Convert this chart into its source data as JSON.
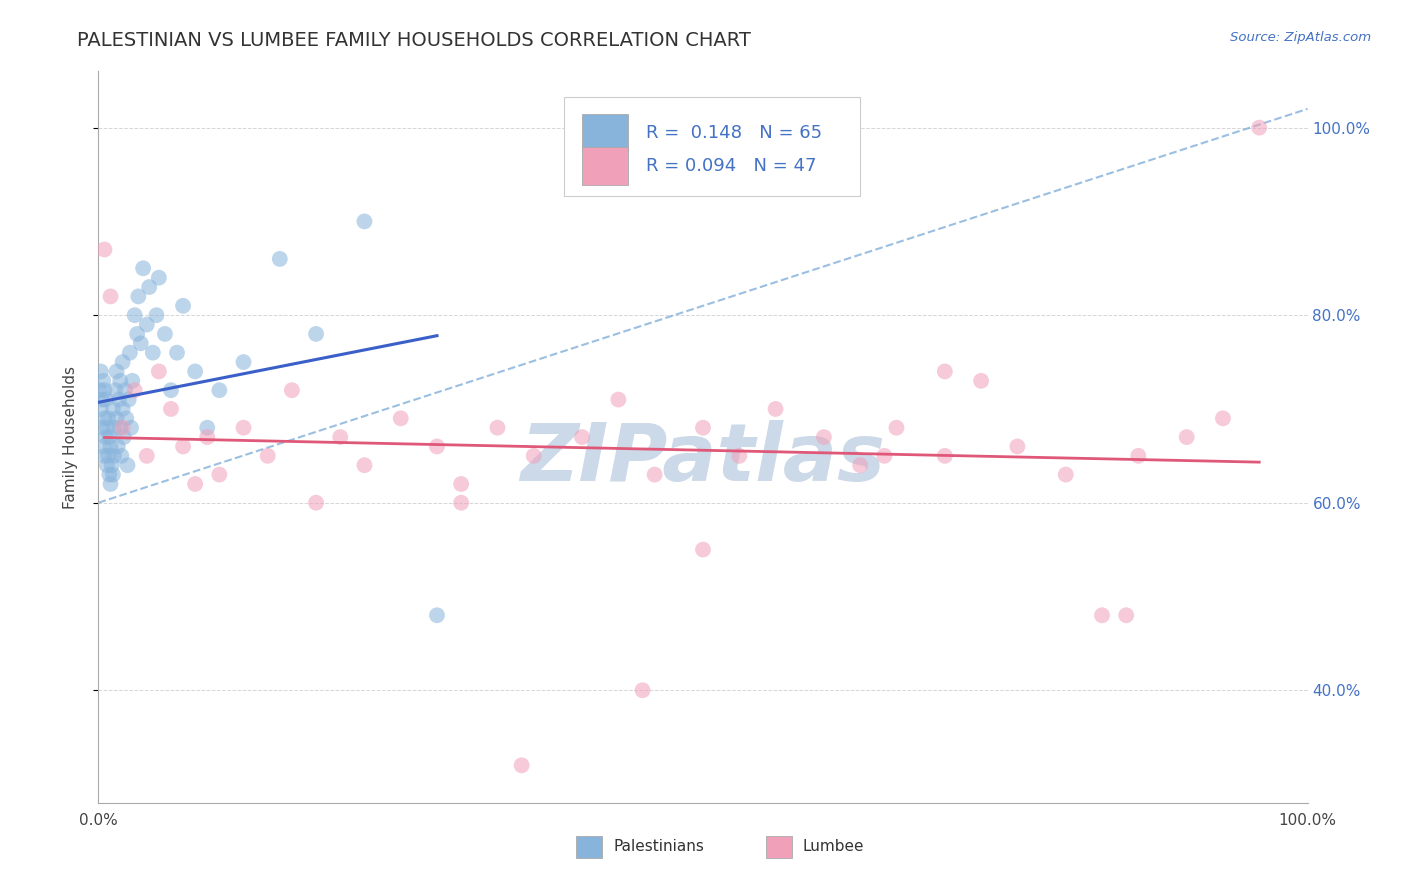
{
  "title": "PALESTINIAN VS LUMBEE FAMILY HOUSEHOLDS CORRELATION CHART",
  "source_text": "Source: ZipAtlas.com",
  "ylabel": "Family Households",
  "xlim": [
    0.0,
    1.0
  ],
  "ylim": [
    0.28,
    1.06
  ],
  "background_color": "#ffffff",
  "grid_color": "#cccccc",
  "watermark": "ZIPatlas",
  "watermark_color": "#ccd9e8",
  "blue_scatter_color": "#88b4dc",
  "pink_scatter_color": "#f0a0b8",
  "blue_line_color": "#3a5fc8",
  "pink_line_color": "#e05878",
  "dashed_line_color": "#7aaad8",
  "title_fontsize": 14,
  "axis_label_fontsize": 11,
  "tick_fontsize": 11,
  "right_tick_color": "#4472c4",
  "legend_blue_text": "R =  0.148   N = 65",
  "legend_pink_text": "R = 0.094   N = 47",
  "bottom_legend_blue": "Palestinians",
  "bottom_legend_pink": "Lumbee",
  "palestinians_x": [
    0.001,
    0.002,
    0.002,
    0.003,
    0.003,
    0.004,
    0.004,
    0.005,
    0.005,
    0.005,
    0.006,
    0.006,
    0.007,
    0.007,
    0.008,
    0.008,
    0.009,
    0.009,
    0.01,
    0.01,
    0.011,
    0.012,
    0.012,
    0.013,
    0.013,
    0.014,
    0.015,
    0.015,
    0.016,
    0.017,
    0.018,
    0.018,
    0.019,
    0.02,
    0.02,
    0.021,
    0.022,
    0.023,
    0.024,
    0.025,
    0.026,
    0.027,
    0.028,
    0.03,
    0.032,
    0.033,
    0.035,
    0.037,
    0.04,
    0.042,
    0.045,
    0.048,
    0.05,
    0.055,
    0.06,
    0.065,
    0.07,
    0.08,
    0.09,
    0.1,
    0.12,
    0.15,
    0.18,
    0.22,
    0.28
  ],
  "palestinians_y": [
    0.72,
    0.7,
    0.74,
    0.68,
    0.71,
    0.66,
    0.73,
    0.69,
    0.65,
    0.72,
    0.67,
    0.71,
    0.64,
    0.68,
    0.65,
    0.69,
    0.63,
    0.67,
    0.62,
    0.66,
    0.64,
    0.7,
    0.63,
    0.68,
    0.65,
    0.72,
    0.69,
    0.74,
    0.66,
    0.71,
    0.68,
    0.73,
    0.65,
    0.7,
    0.75,
    0.67,
    0.72,
    0.69,
    0.64,
    0.71,
    0.76,
    0.68,
    0.73,
    0.8,
    0.78,
    0.82,
    0.77,
    0.85,
    0.79,
    0.83,
    0.76,
    0.8,
    0.84,
    0.78,
    0.72,
    0.76,
    0.81,
    0.74,
    0.68,
    0.72,
    0.75,
    0.86,
    0.78,
    0.9,
    0.48
  ],
  "lumbee_x": [
    0.005,
    0.01,
    0.02,
    0.03,
    0.04,
    0.05,
    0.06,
    0.07,
    0.08,
    0.09,
    0.1,
    0.12,
    0.14,
    0.16,
    0.18,
    0.2,
    0.22,
    0.25,
    0.28,
    0.3,
    0.33,
    0.36,
    0.4,
    0.43,
    0.46,
    0.5,
    0.53,
    0.56,
    0.6,
    0.63,
    0.66,
    0.7,
    0.73,
    0.76,
    0.8,
    0.83,
    0.86,
    0.9,
    0.93,
    0.96,
    0.3,
    0.5,
    0.7,
    0.85,
    0.45,
    0.65,
    0.35
  ],
  "lumbee_y": [
    0.87,
    0.82,
    0.68,
    0.72,
    0.65,
    0.74,
    0.7,
    0.66,
    0.62,
    0.67,
    0.63,
    0.68,
    0.65,
    0.72,
    0.6,
    0.67,
    0.64,
    0.69,
    0.66,
    0.62,
    0.68,
    0.65,
    0.67,
    0.71,
    0.63,
    0.68,
    0.65,
    0.7,
    0.67,
    0.64,
    0.68,
    0.65,
    0.73,
    0.66,
    0.63,
    0.48,
    0.65,
    0.67,
    0.69,
    1.0,
    0.6,
    0.55,
    0.74,
    0.48,
    0.4,
    0.65,
    0.32
  ],
  "dashed_line_x": [
    0.0,
    1.0
  ],
  "dashed_line_y": [
    0.6,
    1.02
  ]
}
